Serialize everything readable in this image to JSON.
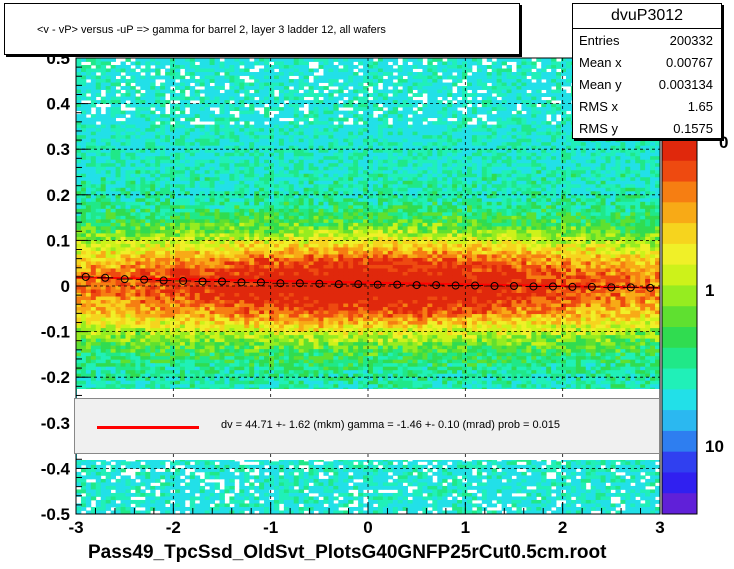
{
  "title": "<v - vP>       versus  -uP =>  gamma for barrel 2, layer 3 ladder 12, all wafers",
  "stats": {
    "name": "dvuP3012",
    "rows": [
      {
        "label": "Entries",
        "value": "200332"
      },
      {
        "label": "Mean x",
        "value": "0.00767"
      },
      {
        "label": "Mean y",
        "value": "0.003134"
      },
      {
        "label": "RMS x",
        "value": "1.65"
      },
      {
        "label": "RMS y",
        "value": "0.1575"
      }
    ]
  },
  "fit": {
    "text": "dv =   44.71 +-  1.62 (mkm) gamma =   -1.46 +-  0.10 (mrad) prob = 0.015",
    "line_color": "#ff0000"
  },
  "chart_data": {
    "type": "heatmap",
    "xlabel": "Pass49_TpcSsd_OldSvt_PlotsG40GNFP25rCut0.5cm.root",
    "ylabel": "",
    "xlim": [
      -3,
      3
    ],
    "ylim": [
      -0.5,
      0.5
    ],
    "x_ticks": [
      "-3",
      "-2",
      "-1",
      "0",
      "1",
      "2",
      "3"
    ],
    "y_ticks": [
      "-0.5",
      "-0.4",
      "-0.3",
      "-0.2",
      "-0.1",
      "0",
      "0.1",
      "0.2",
      "0.3",
      "0.4",
      "0.5"
    ],
    "grid": true,
    "z_scale": "log",
    "z_ticks": [
      "1",
      "10"
    ],
    "z_ticks_clipped": [
      "0"
    ],
    "profile": {
      "name": "mean profile",
      "x": [
        -2.9,
        -2.7,
        -2.5,
        -2.3,
        -2.1,
        -1.9,
        -1.7,
        -1.5,
        -1.3,
        -1.1,
        -0.9,
        -0.7,
        -0.5,
        -0.3,
        -0.1,
        0.1,
        0.3,
        0.5,
        0.7,
        0.9,
        1.1,
        1.3,
        1.5,
        1.7,
        1.9,
        2.1,
        2.3,
        2.5,
        2.7,
        2.9
      ],
      "y": [
        0.02,
        0.018,
        0.015,
        0.014,
        0.012,
        0.011,
        0.01,
        0.01,
        0.008,
        0.008,
        0.006,
        0.006,
        0.005,
        0.004,
        0.004,
        0.003,
        0.003,
        0.002,
        0.002,
        0.001,
        0.001,
        0.0,
        0.0,
        -0.001,
        -0.001,
        -0.002,
        -0.002,
        -0.003,
        -0.003,
        -0.004
      ]
    },
    "fit_line": {
      "x": [
        -3,
        3
      ],
      "y": [
        0.019,
        -0.004
      ]
    }
  }
}
